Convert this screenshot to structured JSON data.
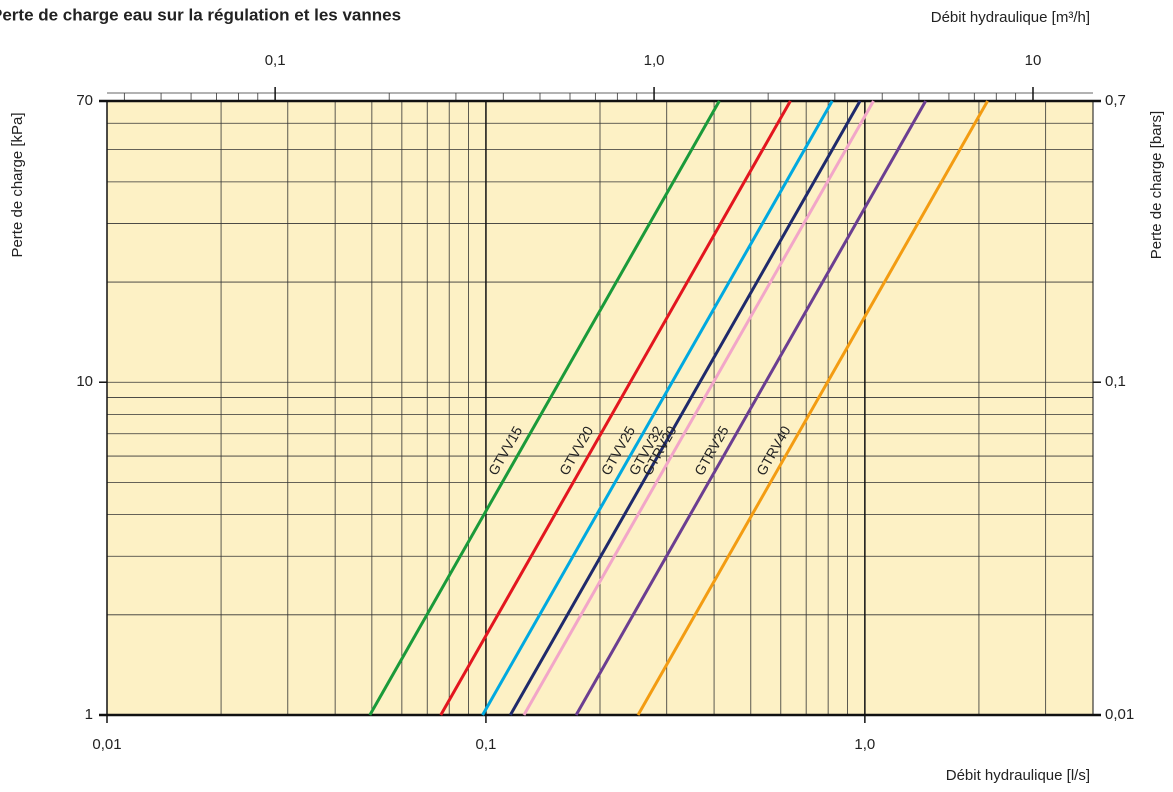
{
  "chart_data": {
    "type": "line",
    "title": "Perte de charge eau sur la régulation et les vannes",
    "xlabel": "Débit hydraulique [l/s]",
    "x2label": "Débit hydraulique [m³/h]",
    "ylabel": "Perte de charge [kPa]",
    "y2label": "Perte de charge [bars]",
    "log_x": true,
    "log_y": true,
    "grid": true,
    "background": "#fdf1c5",
    "xlim": [
      0.01,
      4
    ],
    "xticks": [
      {
        "value": 0.01,
        "label": "0,01"
      },
      {
        "value": 0.1,
        "label": "0,1"
      },
      {
        "value": 1,
        "label": "1,0"
      }
    ],
    "x2lim": [
      0.036,
      14.4
    ],
    "x2ticks": [
      {
        "value": 0.1,
        "label": "0,1"
      },
      {
        "value": 1,
        "label": "1,0"
      },
      10
    ],
    "ylim": [
      1,
      70
    ],
    "yticks": [
      1,
      10,
      70
    ],
    "y2lim": [
      0.01,
      0.7
    ],
    "y2ticks": [
      {
        "value": 0.01,
        "label": "0,01"
      },
      {
        "value": 0.1,
        "label": "0,1"
      },
      {
        "value": 0.7,
        "label": "0,7"
      }
    ],
    "series": [
      {
        "name": "GTVV15",
        "color": "#1a9a3a",
        "x": [
          0.0494,
          0.413
        ],
        "values": [
          1,
          70
        ]
      },
      {
        "name": "GTVV20",
        "color": "#e3161f",
        "x": [
          0.076,
          0.636
        ],
        "values": [
          1,
          70
        ]
      },
      {
        "name": "GTVV25",
        "color": "#00a9e0",
        "x": [
          0.098,
          0.82
        ],
        "values": [
          1,
          70
        ]
      },
      {
        "name": "GTVV32",
        "color": "#1f2a6b",
        "x": [
          0.116,
          0.971
        ],
        "values": [
          1,
          70
        ]
      },
      {
        "name": "GTRV20",
        "color": "#f2a6c8",
        "x": [
          0.126,
          1.054
        ],
        "values": [
          1,
          70
        ]
      },
      {
        "name": "GTRV25",
        "color": "#6b3e91",
        "x": [
          0.173,
          1.447
        ],
        "values": [
          1,
          70
        ]
      },
      {
        "name": "GTRV40",
        "color": "#f39c12",
        "x": [
          0.252,
          2.108
        ],
        "values": [
          1,
          70
        ]
      }
    ]
  }
}
